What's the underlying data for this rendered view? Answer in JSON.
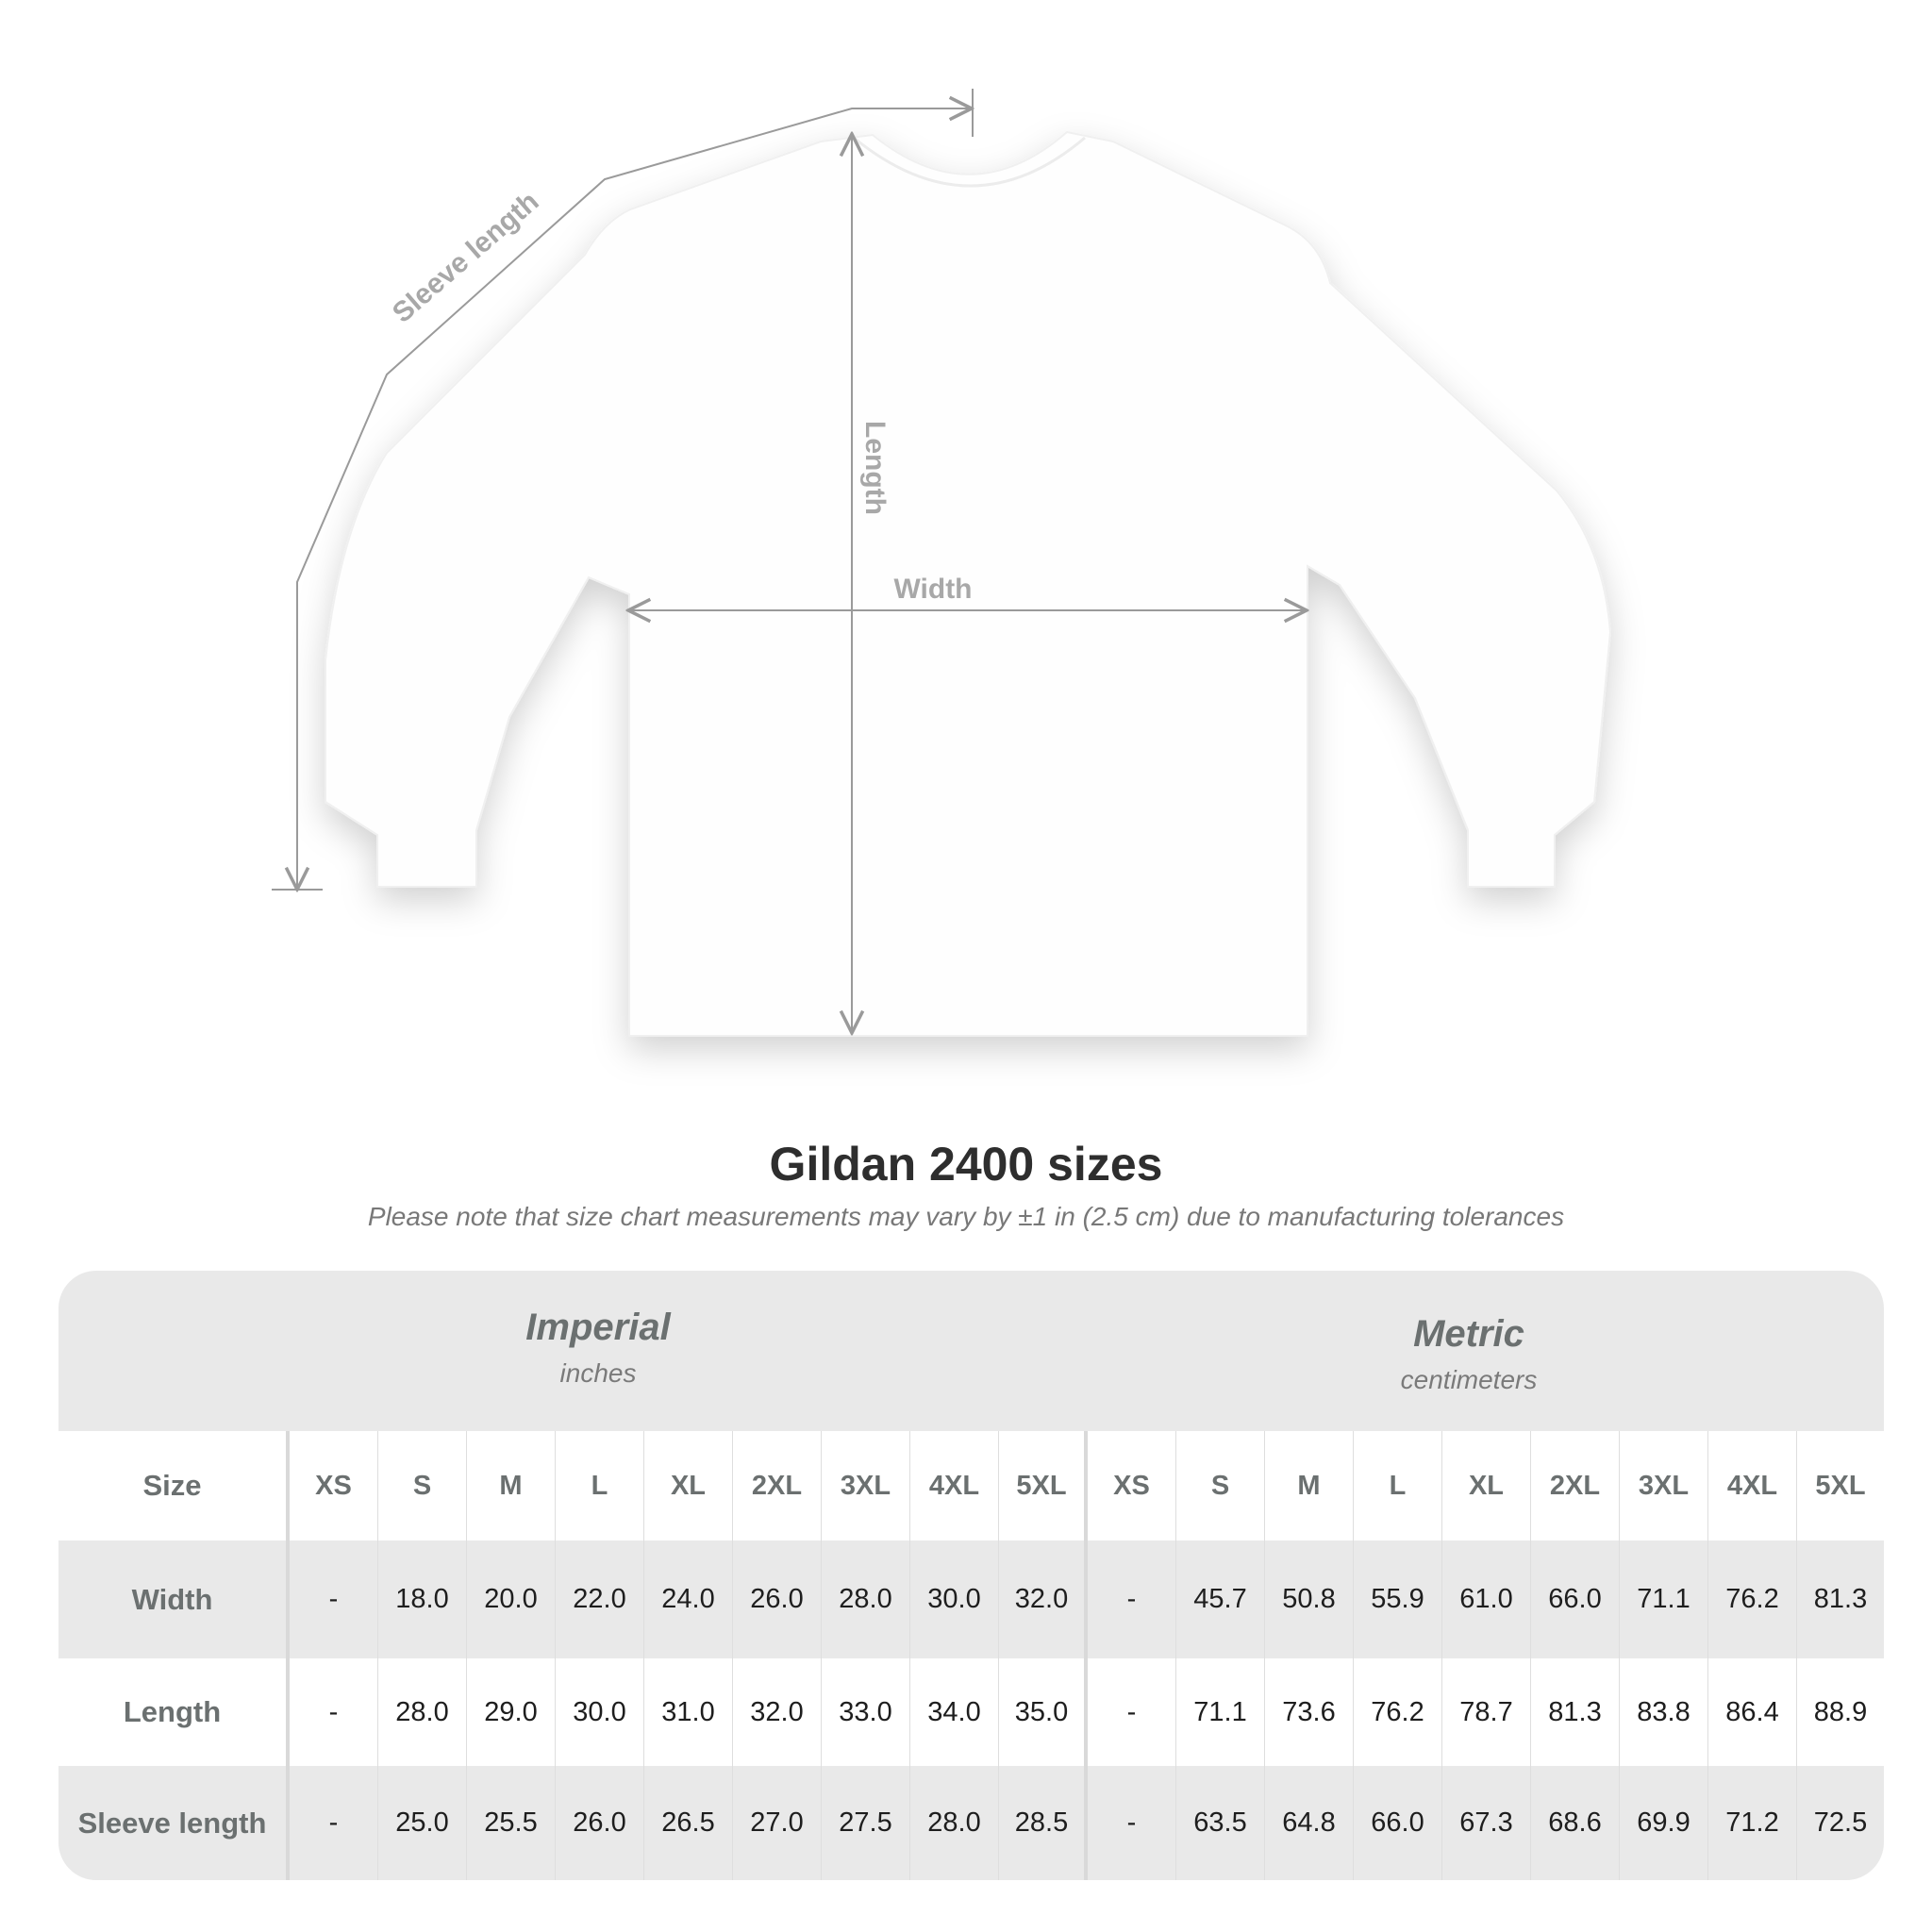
{
  "diagram": {
    "labels": {
      "sleeve": "Sleeve length",
      "length": "Length",
      "width": "Width"
    },
    "colors": {
      "shirt": "#ffffff",
      "lines": "#9a9a9a",
      "label": "#a8a8a8"
    }
  },
  "title": "Gildan 2400 sizes",
  "subtitle": "Please note that size chart measurements may vary by ±1 in (2.5 cm) due to manufacturing tolerances",
  "table": {
    "imperial": {
      "name": "Imperial",
      "unit": "inches"
    },
    "metric": {
      "name": "Metric",
      "unit": "centimeters"
    },
    "size_label": "Size",
    "sizes": [
      "XS",
      "S",
      "M",
      "L",
      "XL",
      "2XL",
      "3XL",
      "4XL",
      "5XL"
    ],
    "rows": [
      {
        "label": "Width",
        "imperial": [
          "-",
          "18.0",
          "20.0",
          "22.0",
          "24.0",
          "26.0",
          "28.0",
          "30.0",
          "32.0"
        ],
        "metric": [
          "-",
          "45.7",
          "50.8",
          "55.9",
          "61.0",
          "66.0",
          "71.1",
          "76.2",
          "81.3"
        ]
      },
      {
        "label": "Length",
        "imperial": [
          "-",
          "28.0",
          "29.0",
          "30.0",
          "31.0",
          "32.0",
          "33.0",
          "34.0",
          "35.0"
        ],
        "metric": [
          "-",
          "71.1",
          "73.6",
          "76.2",
          "78.7",
          "81.3",
          "83.8",
          "86.4",
          "88.9"
        ]
      },
      {
        "label": "Sleeve length",
        "imperial": [
          "-",
          "25.0",
          "25.5",
          "26.0",
          "26.5",
          "27.0",
          "27.5",
          "28.0",
          "28.5"
        ],
        "metric": [
          "-",
          "63.5",
          "64.8",
          "66.0",
          "67.3",
          "68.6",
          "69.9",
          "71.2",
          "72.5"
        ]
      }
    ],
    "colors": {
      "band": "#e9e9e9",
      "label_text": "#6b7070",
      "value_text": "#1e1e1e"
    }
  }
}
